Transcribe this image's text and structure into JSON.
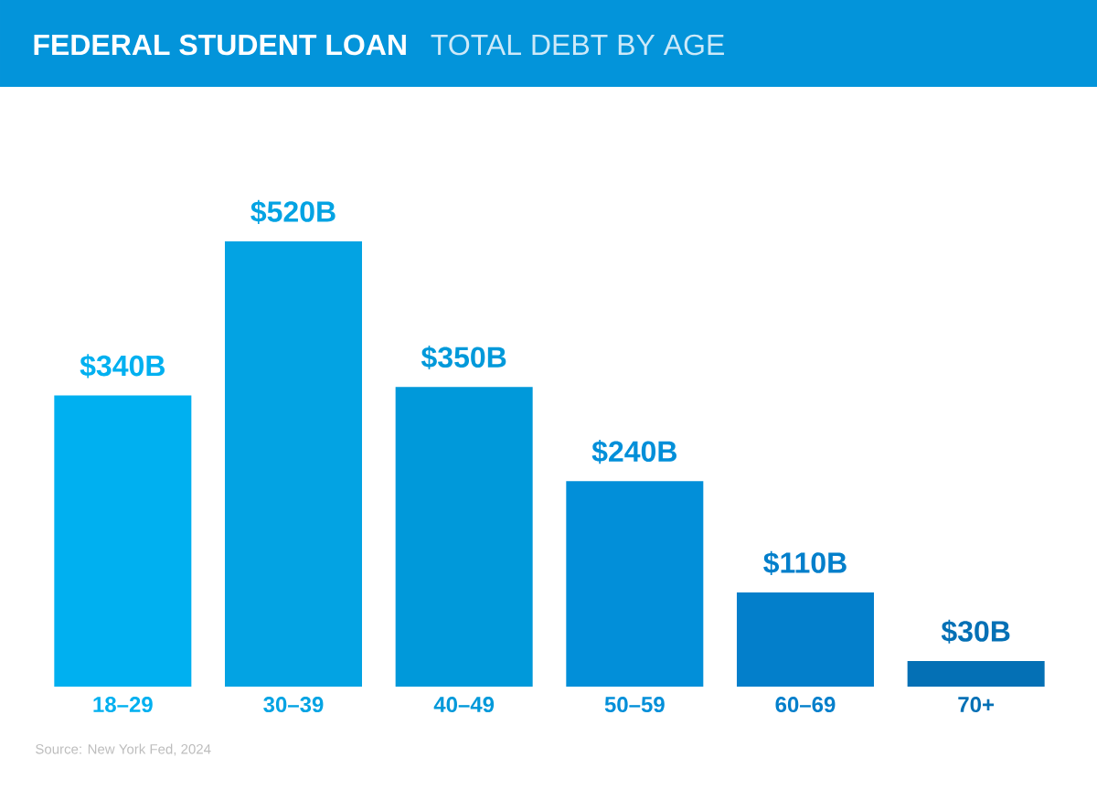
{
  "chart_data": {
    "type": "bar",
    "title": "FEDERAL STUDENT LOAN",
    "subtitle": "TOTAL DEBT BY AGE",
    "categories": [
      "18–29",
      "30–39",
      "40–49",
      "50–59",
      "60–69",
      "70+"
    ],
    "values": [
      340,
      520,
      350,
      240,
      110,
      30
    ],
    "value_labels": [
      "$340B",
      "$520B",
      "$350B",
      "$240B",
      "$110B",
      "$30B"
    ],
    "colors": [
      "#00b0f0",
      "#03a3e3",
      "#0099da",
      "#028fd9",
      "#037fcb",
      "#0470b5"
    ],
    "annotations": [
      "Source: New York Fed, 2024"
    ]
  }
}
